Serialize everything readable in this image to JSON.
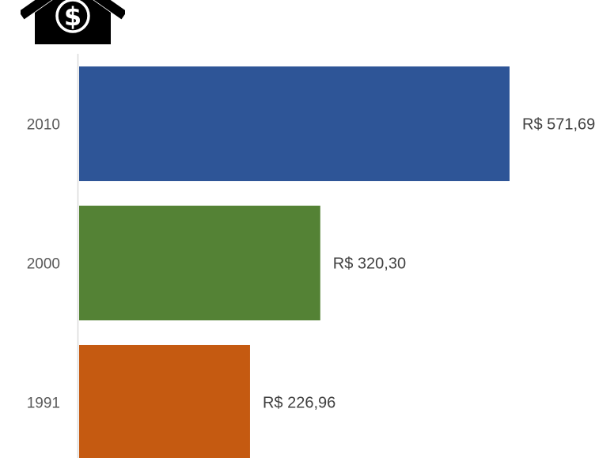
{
  "icon": {
    "name": "house-dollar-icon",
    "color": "#000000"
  },
  "chart_data": {
    "type": "bar",
    "orientation": "horizontal",
    "title": "",
    "xlabel": "",
    "ylabel": "",
    "categories": [
      "2010",
      "2000",
      "1991"
    ],
    "values": [
      571.69,
      320.3,
      226.96
    ],
    "value_labels": [
      "R$ 571,69",
      "R$ 320,30",
      "R$ 226,96"
    ],
    "colors": [
      "#2E5597",
      "#548235",
      "#C55A11"
    ],
    "xlim": [
      0,
      571.69
    ],
    "grid": false,
    "legend": "none"
  }
}
